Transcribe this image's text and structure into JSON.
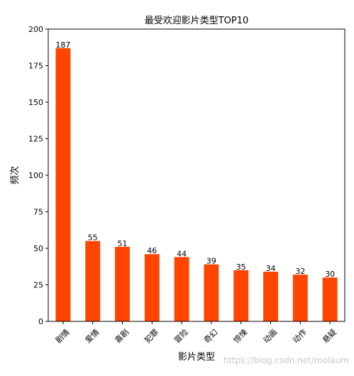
{
  "chart_data": {
    "type": "bar",
    "title": "最受欢迎影片类型TOP10",
    "xlabel": "影片类型",
    "ylabel": "频次",
    "categories": [
      "剧情",
      "爱情",
      "喜剧",
      "犯罪",
      "冒险",
      "奇幻",
      "惊悚",
      "动画",
      "动作",
      "悬疑"
    ],
    "values": [
      187,
      55,
      51,
      46,
      44,
      39,
      35,
      34,
      32,
      30
    ],
    "ylim": [
      0,
      200
    ],
    "yticks": [
      0,
      25,
      50,
      75,
      100,
      125,
      150,
      175,
      200
    ],
    "bar_color": "#ff4500",
    "grid": false,
    "legend": "none"
  },
  "watermark": "https://blog.csdn.net/molaum"
}
